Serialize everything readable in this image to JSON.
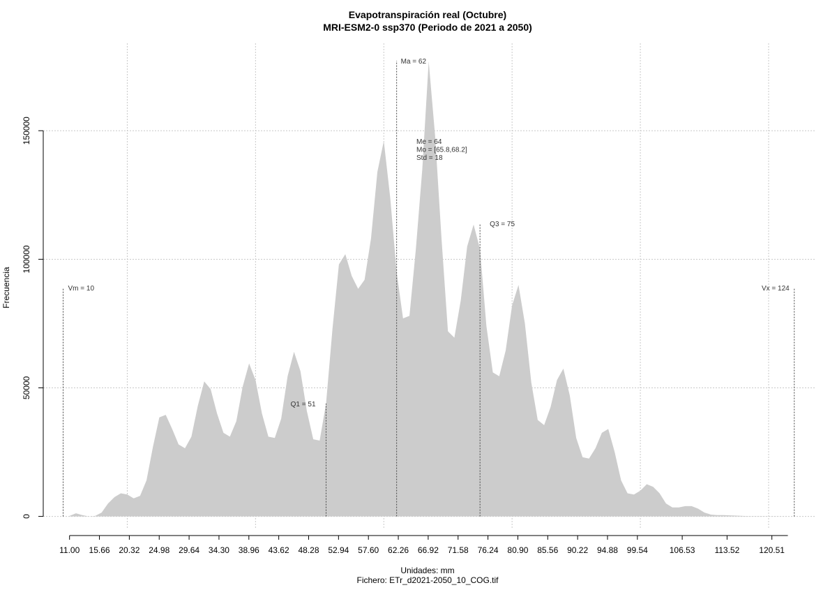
{
  "chart_data": {
    "type": "area",
    "title": "Evapotranspiración real (Octubre)",
    "subtitle": "MRI-ESM2-0 ssp370 (Periodo de 2021 a 2050)",
    "x_label": "Unidades: mm",
    "caption": "Fichero: ETr_d2021-2050_10_COG.tif",
    "y_label": "Frecuencia",
    "color": "#cccccc",
    "x": [
      11,
      12,
      13,
      14,
      15,
      16,
      17,
      18,
      19,
      20,
      21,
      22,
      23,
      24,
      25,
      26,
      27,
      28,
      29,
      30,
      31,
      32,
      33,
      34,
      35,
      36,
      37,
      38,
      39,
      40,
      41,
      42,
      43,
      44,
      45,
      46,
      47,
      48,
      49,
      50,
      51,
      52,
      53,
      54,
      55,
      56,
      57,
      58,
      59,
      60,
      61,
      62,
      63,
      64,
      65,
      66,
      67,
      68,
      69,
      70,
      71,
      72,
      73,
      74,
      75,
      76,
      77,
      78,
      79,
      80,
      81,
      82,
      83,
      84,
      85,
      86,
      87,
      88,
      89,
      90,
      91,
      92,
      93,
      94,
      95,
      96,
      97,
      98,
      99,
      100,
      101,
      102,
      103,
      104,
      105,
      106,
      107,
      108,
      109,
      110,
      111,
      112,
      113,
      114,
      115,
      116,
      117,
      118,
      119,
      120,
      121,
      122,
      123
    ],
    "values": [
      200,
      1200,
      500,
      0,
      200,
      1500,
      5000,
      7500,
      9000,
      8500,
      7000,
      8000,
      14000,
      27000,
      38500,
      39500,
      34000,
      28000,
      26500,
      31000,
      43000,
      52500,
      49500,
      40000,
      32500,
      31000,
      37000,
      50500,
      59500,
      53000,
      40000,
      31000,
      30500,
      38000,
      54500,
      64000,
      56500,
      41000,
      30000,
      29500,
      44000,
      73000,
      98000,
      102000,
      93500,
      88500,
      92000,
      108000,
      134000,
      146000,
      124000,
      95000,
      77000,
      78000,
      104000,
      135000,
      177000,
      148000,
      108000,
      72000,
      69500,
      84000,
      105000,
      113500,
      104000,
      74000,
      56000,
      54500,
      64500,
      82000,
      90000,
      75000,
      52000,
      37500,
      35500,
      42500,
      53000,
      57500,
      47000,
      30500,
      23000,
      22500,
      26500,
      32500,
      34000,
      25000,
      14000,
      9000,
      8500,
      10000,
      12500,
      11500,
      9000,
      5000,
      3500,
      3500,
      4000,
      4000,
      3000,
      1500,
      700,
      500,
      500,
      400,
      300,
      200,
      100,
      100,
      100,
      50,
      50,
      20,
      10
    ],
    "xlim": [
      6.9,
      127.4
    ],
    "ylim": [
      -5000,
      184000
    ],
    "xticks": [
      {
        "value": 11,
        "label": "11.00"
      },
      15.66,
      20.32,
      24.98,
      29.64,
      {
        "value": 34.3,
        "label": "34.30"
      },
      38.96,
      43.62,
      48.28,
      52.94,
      {
        "value": 57.6,
        "label": "57.60"
      },
      62.26,
      66.92,
      71.58,
      76.24,
      {
        "value": 80.9,
        "label": "80.90"
      },
      85.56,
      90.22,
      94.88,
      99.54,
      106.53,
      113.52,
      120.51
    ],
    "yticks": [
      0,
      50000,
      100000,
      150000
    ],
    "xgrid": [
      20,
      40,
      60,
      80,
      100,
      120
    ],
    "grid": true,
    "annotations": [
      {
        "text": "Vm = 10",
        "x": 10
      },
      {
        "text": "Q1 = 51",
        "x": 51
      },
      {
        "text": "Ma = 62",
        "x": 62
      },
      {
        "text": "Q3 = 75",
        "x": 75
      },
      {
        "text": "Vx = 124",
        "x": 124
      }
    ],
    "stats": [
      "Me = 64",
      "Mo = [65.8,68.2]",
      "Std = 18"
    ]
  }
}
